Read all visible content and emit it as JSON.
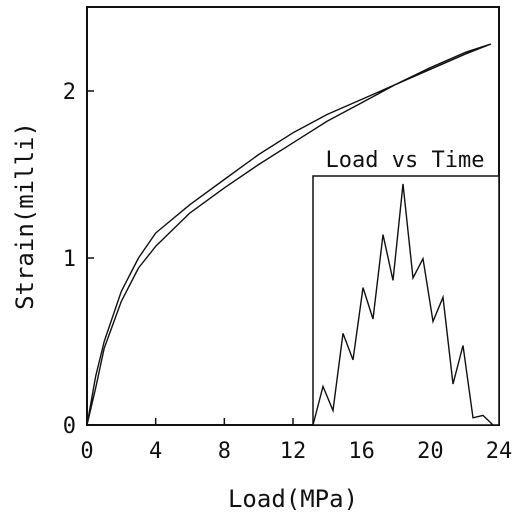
{
  "chart_data": [
    {
      "type": "line",
      "title": "",
      "xlabel": "Load(MPa)",
      "ylabel": "Strain(milli)",
      "xlim": [
        0,
        24
      ],
      "ylim": [
        0,
        2.5
      ],
      "xticks": [
        0,
        4,
        8,
        12,
        16,
        20,
        24
      ],
      "yticks": [
        0,
        1,
        2
      ],
      "grid": false,
      "series": [
        {
          "name": "",
          "style": "hysteresis-loop",
          "x": [
            0,
            0.5,
            1,
            2,
            3,
            4,
            6,
            8,
            10,
            12,
            14,
            16,
            18,
            20,
            22,
            23.5,
            22,
            20,
            18,
            16,
            14,
            12,
            10,
            8,
            6,
            4,
            3,
            2,
            1,
            0.5,
            0
          ],
          "y": [
            0,
            0.29,
            0.5,
            0.8,
            1.0,
            1.15,
            1.32,
            1.47,
            1.62,
            1.75,
            1.86,
            1.95,
            2.04,
            2.13,
            2.22,
            2.28,
            2.23,
            2.14,
            2.04,
            1.93,
            1.82,
            1.69,
            1.56,
            1.42,
            1.27,
            1.07,
            0.94,
            0.74,
            0.46,
            0.22,
            0
          ]
        }
      ]
    },
    {
      "type": "line",
      "title": "Load vs Time",
      "xlabel": "",
      "ylabel": "",
      "grid": false,
      "series": [
        {
          "name": "",
          "y": [
            0,
            0.16,
            0.06,
            0.38,
            0.27,
            0.57,
            0.44,
            0.79,
            0.6,
            1.0,
            0.61,
            0.69,
            0.43,
            0.53,
            0.17,
            0.33,
            0.03,
            0.04,
            0
          ]
        }
      ]
    }
  ]
}
